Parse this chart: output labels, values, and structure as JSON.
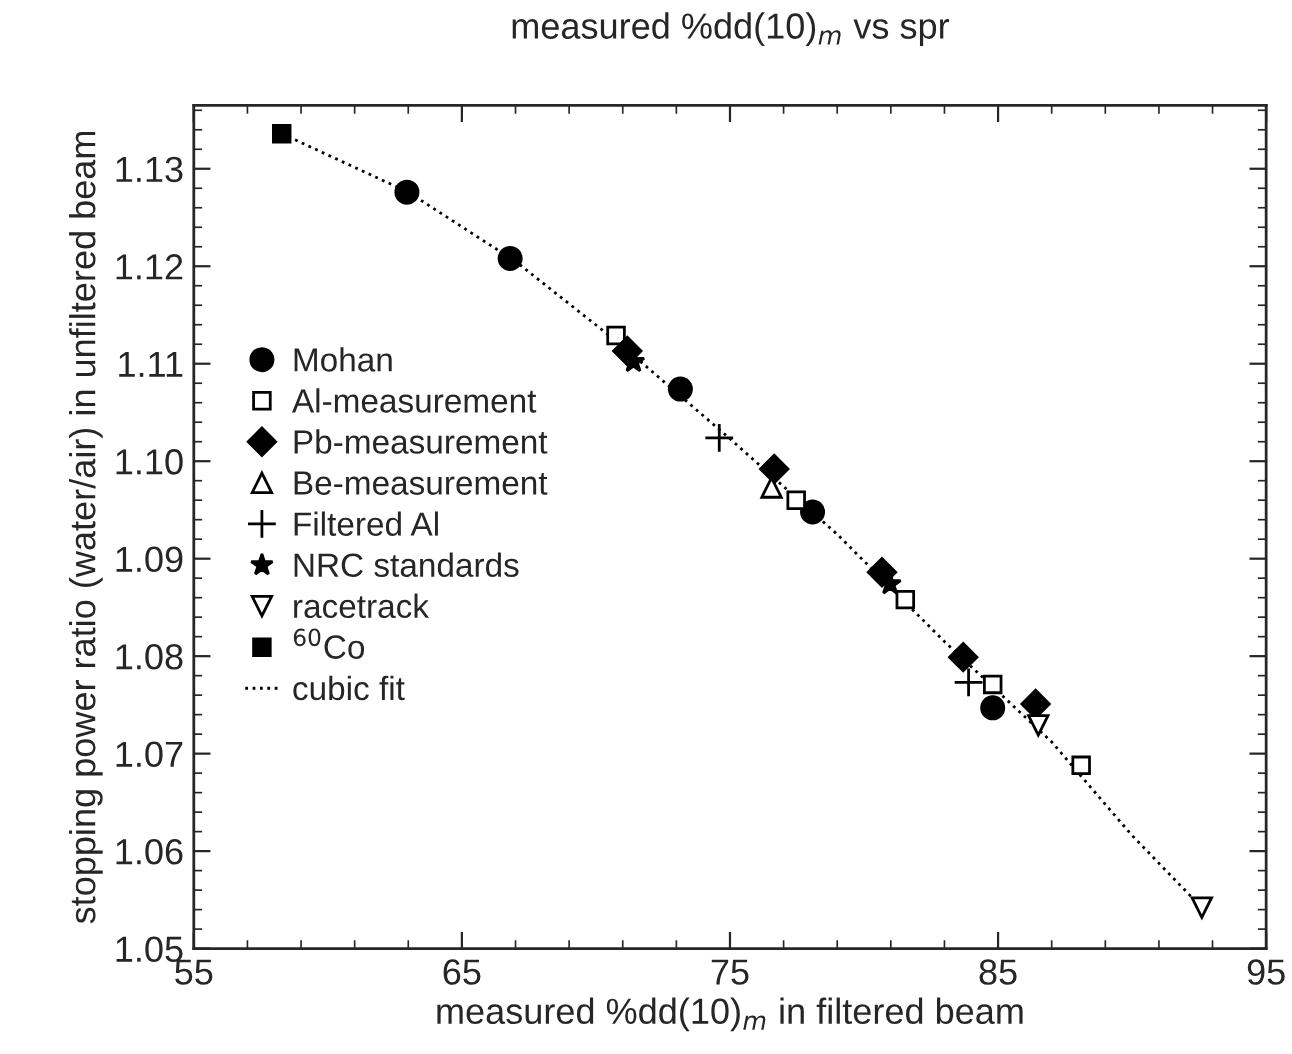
{
  "chart_data": {
    "type": "scatter",
    "title": "measured %dd(10)$_{m}$ vs spr",
    "xlabel": "measured %dd(10)$_{m}$ in filtered beam",
    "ylabel": "stopping power ratio (water/air) in unfiltered beam",
    "xlim": [
      55,
      95
    ],
    "xticks": [
      55,
      65,
      75,
      85,
      95
    ],
    "ylim": [
      1.05,
      1.1365
    ],
    "yticks": [
      1.05,
      1.06,
      1.07,
      1.08,
      1.09,
      {
        "value": 1.1,
        "label": "1.10"
      },
      1.11,
      1.12,
      1.13
    ],
    "grid": false,
    "legend": "center left",
    "series": [
      {
        "name": "Mohan",
        "color": "#000000",
        "marker": "circle",
        "x": [
          62.95,
          66.8,
          73.15,
          78.08,
          84.8
        ],
        "values": [
          1.1276,
          1.1208,
          1.1074,
          1.0948,
          1.0747
        ]
      },
      {
        "name": "Al-measurement",
        "color": "#000000",
        "marker": "square-open",
        "x": [
          70.75,
          77.47,
          81.54,
          84.8,
          88.1
        ],
        "values": [
          1.1129,
          1.096,
          1.0858,
          1.0771,
          1.0688
        ]
      },
      {
        "name": "Pb-measurement",
        "color": "#000000",
        "marker": "diamond",
        "x": [
          71.17,
          76.65,
          80.67,
          83.7,
          86.4
        ],
        "values": [
          1.1113,
          1.0992,
          1.0886,
          1.0799,
          1.0751
        ]
      },
      {
        "name": "Be-measurement",
        "color": "#000000",
        "marker": "triangle-open",
        "x": [
          76.55
        ],
        "values": [
          1.0973
        ]
      },
      {
        "name": "Filtered Al",
        "color": "#000000",
        "marker": "cross",
        "x": [
          74.6,
          83.9
        ],
        "values": [
          1.1024,
          1.0773
        ]
      },
      {
        "name": "NRC standards",
        "color": "#000000",
        "marker": "star",
        "x": [
          71.4,
          80.97
        ],
        "values": [
          1.1102,
          1.0874
        ]
      },
      {
        "name": "racetrack",
        "color": "#000000",
        "marker": "triangle-down-open",
        "x": [
          86.5,
          92.6
        ],
        "values": [
          1.0729,
          1.0542
        ]
      },
      {
        "name": "$^{60}$Co",
        "color": "#000000",
        "marker": "square",
        "x": [
          58.28
        ],
        "values": [
          1.1336
        ]
      },
      {
        "name": "cubic fit",
        "type": "line",
        "color": "#000000",
        "marker": "none",
        "line_style": "dotted",
        "x": [
          58.28,
          63,
          67,
          71,
          75,
          79,
          83,
          87,
          90,
          92.6
        ],
        "values": [
          1.1336,
          1.1276,
          1.1205,
          1.1118,
          1.1023,
          1.0925,
          1.0815,
          1.0712,
          1.0616,
          1.0542
        ]
      }
    ]
  }
}
